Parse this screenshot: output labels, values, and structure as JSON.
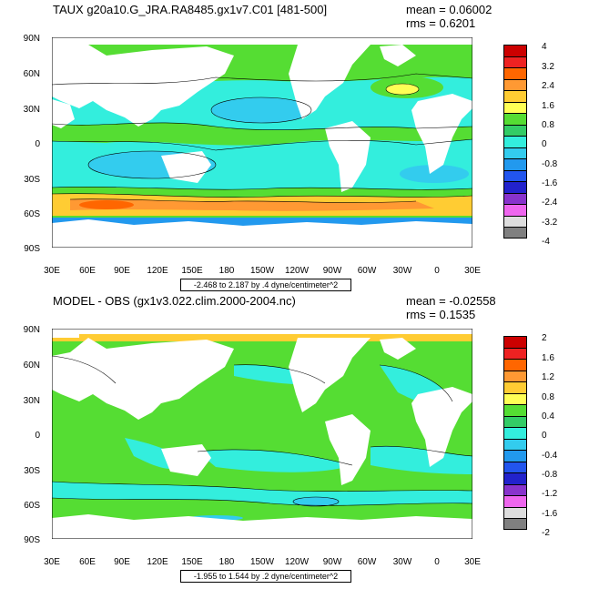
{
  "panels": [
    {
      "title": "TAUX g20a10.G_JRA.RA8485.gx1v7.C01 [481-500]",
      "mean": "mean = 0.06002",
      "rms": "rms = 0.6201",
      "range": "-2.468 to 2.187 by .4 dyne/centimeter^2",
      "colorbar_labels": [
        "4",
        "3.2",
        "2.4",
        "1.6",
        "0.8",
        "0",
        "-0.8",
        "-1.6",
        "-2.4",
        "-3.2",
        "-4"
      ],
      "colors": [
        "#cc0000",
        "#ee2222",
        "#ff6600",
        "#ff9933",
        "#ffcc33",
        "#ffff55",
        "#55dd33",
        "#33cc66",
        "#33eedd",
        "#33ccee",
        "#2299ee",
        "#2255ee",
        "#2222cc",
        "#8833cc",
        "#ee66ee",
        "#dddddd",
        "#808080"
      ]
    },
    {
      "title": "MODEL - OBS (gx1v3.022.clim.2000-2004.nc)",
      "mean": "mean = -0.02558",
      "rms": "rms = 0.1535",
      "range": "-1.955 to 1.544 by .2 dyne/centimeter^2",
      "colorbar_labels": [
        "2",
        "1.6",
        "1.2",
        "0.8",
        "0.4",
        "0",
        "-0.4",
        "-0.8",
        "-1.2",
        "-1.6",
        "-2"
      ],
      "colors": [
        "#cc0000",
        "#ee2222",
        "#ff6600",
        "#ff9933",
        "#ffcc33",
        "#ffff55",
        "#55dd33",
        "#33cc66",
        "#33eedd",
        "#33ccee",
        "#2299ee",
        "#2255ee",
        "#2222cc",
        "#8833cc",
        "#ee66ee",
        "#dddddd",
        "#808080"
      ]
    }
  ],
  "lat_labels": [
    "90N",
    "60N",
    "30N",
    "0",
    "30S",
    "60S",
    "90S"
  ],
  "lon_labels": [
    "30E",
    "60E",
    "90E",
    "120E",
    "150E",
    "180",
    "150W",
    "120W",
    "90W",
    "60W",
    "30W",
    "0",
    "30E"
  ]
}
